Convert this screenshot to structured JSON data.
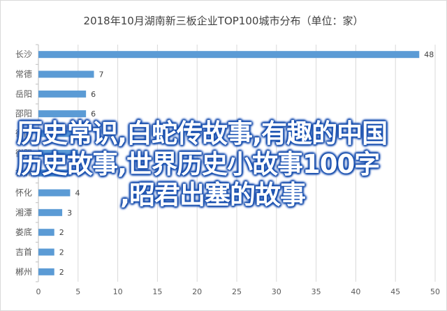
{
  "chart_data": {
    "type": "bar",
    "orientation": "horizontal",
    "title": "2018年10月湖南新三板企业TOP100城市分布（单位：家）",
    "categories": [
      "长沙",
      "常德",
      "岳阳",
      "邵阳",
      "衡阳",
      "衡阳",
      "株洲",
      "怀化",
      "湘潭",
      "娄底",
      "吉首",
      "郴州"
    ],
    "values": [
      48,
      7,
      6,
      6,
      5,
      5,
      4,
      4,
      3,
      2,
      2,
      2
    ],
    "data_labels": [
      "48",
      "7",
      "6",
      "6",
      "",
      "",
      "4",
      "4",
      "3",
      "2",
      "2",
      "2"
    ],
    "xlim": [
      0,
      50
    ],
    "x_ticks": [
      "0",
      "5",
      "10",
      "15",
      "20",
      "25",
      "30",
      "35",
      "40",
      "45",
      "50"
    ],
    "grid": "vertical",
    "bar_color": "#5b9bd5"
  },
  "overlay": {
    "line1": "历史常识,白蛇传故事,有趣的中国",
    "line2": "历史故事,世界历史小故事100字",
    "line3": ",昭君出塞的故事"
  }
}
